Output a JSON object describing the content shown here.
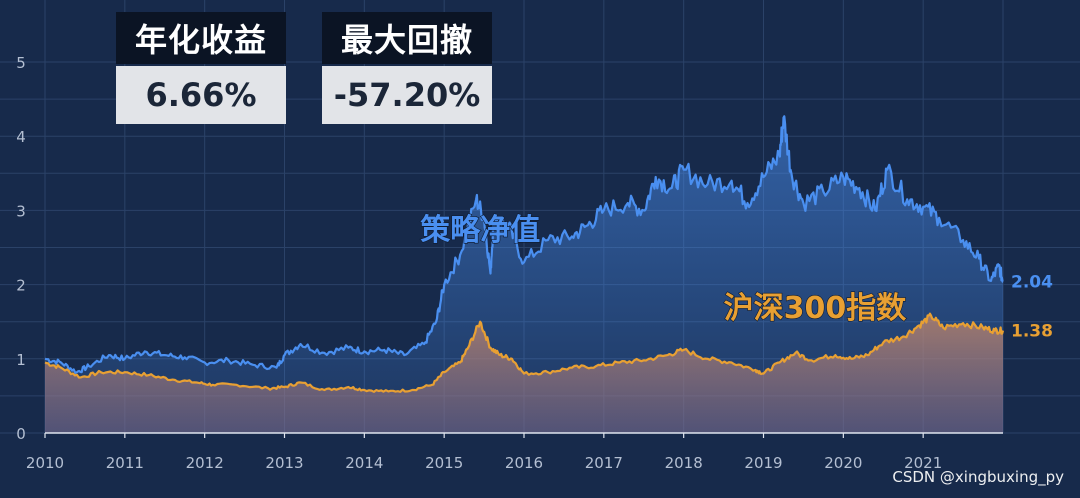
{
  "stats": {
    "annual_return_label": "年化收益",
    "annual_return_value": "6.66%",
    "max_drawdown_label": "最大回撤",
    "max_drawdown_value": "-57.20%"
  },
  "watermark": "CSDN @xingbuxing_py",
  "colors": {
    "background": "#172a4b",
    "strategy": "#4a8ff0",
    "index": "#e8a033",
    "grid": "#2b4268",
    "axis_text": "#b4bfd2"
  },
  "chart_data": {
    "type": "area",
    "title": "",
    "xlabel": "",
    "ylabel": "",
    "xlim": [
      2010.0,
      2022.0
    ],
    "ylim": [
      0,
      5
    ],
    "x_ticks": [
      "2010",
      "2011",
      "2012",
      "2013",
      "2014",
      "2015",
      "2016",
      "2017",
      "2018",
      "2019",
      "2020",
      "2021"
    ],
    "y_ticks": [
      "0",
      "1",
      "2",
      "3",
      "4",
      "5"
    ],
    "grid": true,
    "series": [
      {
        "name": "策略净值",
        "end_label": "2.04",
        "points": [
          [
            2010.0,
            1.0
          ],
          [
            2010.2,
            0.95
          ],
          [
            2010.4,
            0.82
          ],
          [
            2010.55,
            0.9
          ],
          [
            2010.8,
            1.05
          ],
          [
            2011.0,
            1.0
          ],
          [
            2011.25,
            1.1
          ],
          [
            2011.5,
            1.05
          ],
          [
            2011.75,
            1.02
          ],
          [
            2012.0,
            0.95
          ],
          [
            2012.3,
            0.98
          ],
          [
            2012.6,
            0.92
          ],
          [
            2012.9,
            0.88
          ],
          [
            2013.0,
            1.05
          ],
          [
            2013.2,
            1.2
          ],
          [
            2013.5,
            1.08
          ],
          [
            2013.8,
            1.15
          ],
          [
            2014.0,
            1.1
          ],
          [
            2014.25,
            1.12
          ],
          [
            2014.5,
            1.05
          ],
          [
            2014.75,
            1.2
          ],
          [
            2014.9,
            1.5
          ],
          [
            2015.0,
            2.0
          ],
          [
            2015.2,
            2.4
          ],
          [
            2015.4,
            3.15
          ],
          [
            2015.5,
            2.9
          ],
          [
            2015.58,
            2.15
          ],
          [
            2015.62,
            2.9
          ],
          [
            2015.8,
            2.8
          ],
          [
            2016.0,
            2.3
          ],
          [
            2016.3,
            2.6
          ],
          [
            2016.6,
            2.65
          ],
          [
            2016.8,
            2.8
          ],
          [
            2017.0,
            3.0
          ],
          [
            2017.3,
            3.1
          ],
          [
            2017.5,
            3.0
          ],
          [
            2017.65,
            3.45
          ],
          [
            2017.85,
            3.3
          ],
          [
            2018.0,
            3.55
          ],
          [
            2018.3,
            3.35
          ],
          [
            2018.6,
            3.4
          ],
          [
            2018.8,
            3.1
          ],
          [
            2019.0,
            3.45
          ],
          [
            2019.2,
            3.75
          ],
          [
            2019.25,
            4.25
          ],
          [
            2019.35,
            3.5
          ],
          [
            2019.5,
            3.1
          ],
          [
            2019.75,
            3.25
          ],
          [
            2020.0,
            3.45
          ],
          [
            2020.2,
            3.3
          ],
          [
            2020.4,
            3.0
          ],
          [
            2020.55,
            3.55
          ],
          [
            2020.8,
            3.15
          ],
          [
            2021.0,
            3.05
          ],
          [
            2021.2,
            2.9
          ],
          [
            2021.5,
            2.6
          ],
          [
            2021.7,
            2.35
          ],
          [
            2021.85,
            2.05
          ],
          [
            2021.95,
            2.25
          ],
          [
            2022.0,
            2.04
          ]
        ]
      },
      {
        "name": "沪深300指数",
        "end_label": "1.38",
        "points": [
          [
            2010.0,
            0.95
          ],
          [
            2010.2,
            0.88
          ],
          [
            2010.45,
            0.75
          ],
          [
            2010.7,
            0.82
          ],
          [
            2011.0,
            0.82
          ],
          [
            2011.3,
            0.78
          ],
          [
            2011.6,
            0.72
          ],
          [
            2011.9,
            0.68
          ],
          [
            2012.1,
            0.65
          ],
          [
            2012.4,
            0.65
          ],
          [
            2012.8,
            0.6
          ],
          [
            2013.0,
            0.62
          ],
          [
            2013.2,
            0.68
          ],
          [
            2013.5,
            0.58
          ],
          [
            2013.8,
            0.62
          ],
          [
            2014.0,
            0.58
          ],
          [
            2014.3,
            0.56
          ],
          [
            2014.6,
            0.58
          ],
          [
            2014.85,
            0.65
          ],
          [
            2015.0,
            0.82
          ],
          [
            2015.2,
            0.95
          ],
          [
            2015.3,
            1.15
          ],
          [
            2015.45,
            1.5
          ],
          [
            2015.58,
            1.15
          ],
          [
            2015.7,
            1.05
          ],
          [
            2015.85,
            1.0
          ],
          [
            2016.0,
            0.8
          ],
          [
            2016.3,
            0.82
          ],
          [
            2016.6,
            0.88
          ],
          [
            2016.9,
            0.9
          ],
          [
            2017.2,
            0.95
          ],
          [
            2017.5,
            0.98
          ],
          [
            2017.8,
            1.05
          ],
          [
            2018.0,
            1.12
          ],
          [
            2018.3,
            1.0
          ],
          [
            2018.6,
            0.95
          ],
          [
            2018.9,
            0.85
          ],
          [
            2019.0,
            0.8
          ],
          [
            2019.2,
            0.95
          ],
          [
            2019.4,
            1.08
          ],
          [
            2019.6,
            0.98
          ],
          [
            2019.9,
            1.05
          ],
          [
            2020.1,
            1.0
          ],
          [
            2020.3,
            1.05
          ],
          [
            2020.5,
            1.22
          ],
          [
            2020.75,
            1.3
          ],
          [
            2020.95,
            1.45
          ],
          [
            2021.1,
            1.58
          ],
          [
            2021.25,
            1.42
          ],
          [
            2021.5,
            1.48
          ],
          [
            2021.75,
            1.42
          ],
          [
            2021.9,
            1.38
          ],
          [
            2022.0,
            1.38
          ]
        ]
      }
    ],
    "annotations": [
      {
        "text": "策略净值",
        "x": 2014.7,
        "y": 2.6,
        "series": 0
      },
      {
        "text": "沪深300指数",
        "x": 2018.5,
        "y": 1.55,
        "series": 1
      }
    ]
  }
}
